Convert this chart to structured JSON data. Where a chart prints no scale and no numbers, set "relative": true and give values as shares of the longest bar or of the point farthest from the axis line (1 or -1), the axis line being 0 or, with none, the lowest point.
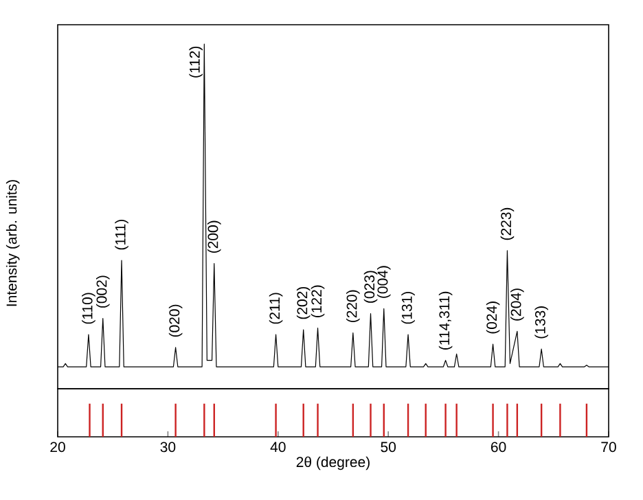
{
  "chart_data": [
    {
      "type": "line",
      "relative": true,
      "ylabel": "Intensity (arb. units)",
      "color": "#000000",
      "xlim": [
        20,
        70
      ],
      "tick_labels": false,
      "line_style": "solid",
      "marker": "none",
      "x": [
        20,
        20.5,
        20.7,
        20.9,
        22.6,
        22.8,
        23.0,
        23.9,
        24.1,
        24.3,
        25.6,
        25.8,
        26.0,
        30.5,
        30.7,
        30.9,
        33.1,
        33.3,
        33.55,
        34.0,
        34.2,
        34.4,
        39.6,
        39.8,
        40.0,
        42.1,
        42.3,
        42.5,
        43.4,
        43.6,
        43.8,
        46.6,
        46.8,
        47.0,
        48.2,
        48.4,
        48.6,
        49.4,
        49.6,
        49.8,
        51.6,
        51.8,
        52.0,
        53.2,
        53.4,
        53.6,
        55.0,
        55.2,
        55.4,
        56.0,
        56.2,
        56.4,
        59.3,
        59.5,
        59.7,
        60.6,
        60.8,
        61.05,
        61.7,
        61.9,
        63.7,
        63.9,
        64.1,
        65.4,
        65.6,
        65.8,
        67.8,
        68.0,
        68.2,
        70
      ],
      "values": [
        0,
        0,
        0.01,
        0,
        0,
        0.1,
        0,
        0,
        0.15,
        0,
        0,
        0.33,
        0,
        0,
        0.06,
        0,
        0,
        1.0,
        0.02,
        0.02,
        0.32,
        0,
        0,
        0.1,
        0,
        0,
        0.115,
        0,
        0,
        0.12,
        0,
        0,
        0.105,
        0,
        0,
        0.165,
        0,
        0,
        0.18,
        0,
        0,
        0.1,
        0,
        0,
        0.01,
        0,
        0,
        0.02,
        0,
        0,
        0.04,
        0,
        0,
        0.07,
        0,
        0,
        0.36,
        0.01,
        0.11,
        0,
        0,
        0.055,
        0,
        0,
        0.01,
        0,
        0,
        0.005,
        0,
        0
      ],
      "annotations": [
        {
          "text": "(110)",
          "x": 22.8,
          "y": 0.1
        },
        {
          "text": "(002)",
          "x": 24.1,
          "y": 0.15
        },
        {
          "text": "(111)",
          "x": 25.8,
          "y": 0.33
        },
        {
          "text": "(020)",
          "x": 30.7,
          "y": 0.06
        },
        {
          "text": "(112)",
          "x": 33.3,
          "y": 1.0
        },
        {
          "text": "(200)",
          "x": 34.2,
          "y": 0.32
        },
        {
          "text": "(211)",
          "x": 39.8,
          "y": 0.1
        },
        {
          "text": "(202)",
          "x": 42.3,
          "y": 0.115
        },
        {
          "text": "(122)",
          "x": 43.6,
          "y": 0.12
        },
        {
          "text": "(220)",
          "x": 46.8,
          "y": 0.105
        },
        {
          "text": "(023)",
          "x": 48.4,
          "y": 0.165
        },
        {
          "text": "(004)",
          "x": 49.6,
          "y": 0.18
        },
        {
          "text": "(131)",
          "x": 51.8,
          "y": 0.1
        },
        {
          "text": "(114,311)",
          "x": 55.2,
          "y": 0.02
        },
        {
          "text": "(024)",
          "x": 59.5,
          "y": 0.07
        },
        {
          "text": "(223)",
          "x": 60.8,
          "y": 0.36
        },
        {
          "text": "(204)",
          "x": 61.7,
          "y": 0.11
        },
        {
          "text": "(133)",
          "x": 63.9,
          "y": 0.055
        }
      ]
    },
    {
      "type": "bar",
      "relative": true,
      "xlabel": "2θ (degree)",
      "color": "#cc2222",
      "xlim": [
        20,
        70
      ],
      "xticks": [
        20,
        30,
        40,
        50,
        60,
        70
      ],
      "tick_labels": "x",
      "x": [
        22.9,
        24.1,
        25.8,
        30.7,
        33.3,
        34.2,
        39.8,
        42.3,
        43.6,
        46.8,
        48.4,
        49.6,
        51.8,
        53.4,
        55.2,
        56.2,
        59.5,
        60.8,
        61.7,
        63.9,
        65.6,
        68.0
      ],
      "values": [
        1,
        1,
        1,
        1,
        1,
        1,
        1,
        1,
        1,
        1,
        1,
        1,
        1,
        1,
        1,
        1,
        1,
        1,
        1,
        1,
        1,
        1
      ]
    }
  ]
}
